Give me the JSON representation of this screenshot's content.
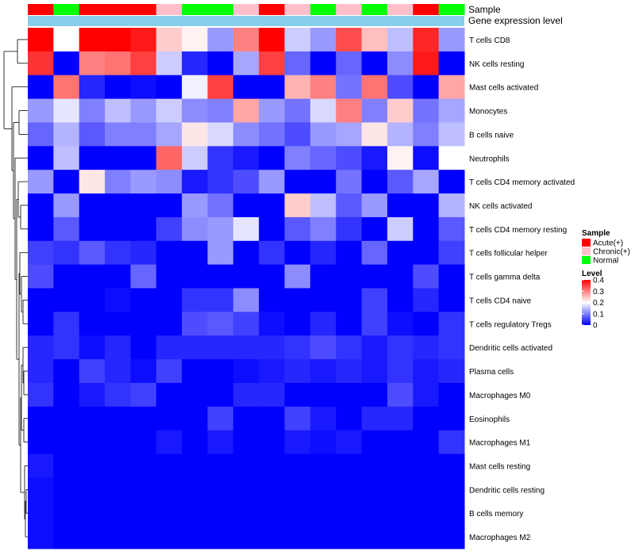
{
  "chart_data": {
    "type": "heatmap",
    "title": "",
    "annotation_tracks": {
      "sample_label": "Sample",
      "gene_label": "Gene expression level"
    },
    "columns_sample": [
      "Acute(+)",
      "Normal",
      "Acute(+)",
      "Acute(+)",
      "Acute(+)",
      "Chronic(+)",
      "Normal",
      "Normal",
      "Chronic(+)",
      "Acute(+)",
      "Chronic(+)",
      "Normal",
      "Chronic(+)",
      "Normal",
      "Chronic(+)",
      "Acute(+)",
      "Normal"
    ],
    "row_labels": [
      "T cells CD8",
      "NK cells resting",
      "Mast cells activated",
      "Monocytes",
      "B cells naive",
      "Neutrophils",
      "T cells CD4 memory activated",
      "NK cells activated",
      "T cells CD4 memory resting",
      "T cells follicular helper",
      "T cells gamma delta",
      "T cells CD4 naive",
      "T cells regulatory  Tregs",
      "Dendritic cells activated",
      "Plasma cells",
      "Macrophages M0",
      "Eosinophils",
      "Macrophages M1",
      "Mast cells resting",
      "Dendritic cells resting",
      "B cells memory",
      "Macrophages M2"
    ],
    "values": [
      [
        0.4,
        0.2,
        0.4,
        0.4,
        0.38,
        0.24,
        0.21,
        0.12,
        0.3,
        0.4,
        0.16,
        0.12,
        0.34,
        0.25,
        0.15,
        0.37,
        0.12
      ],
      [
        0.36,
        0.0,
        0.3,
        0.31,
        0.35,
        0.16,
        0.03,
        0.0,
        0.13,
        0.35,
        0.08,
        0.0,
        0.08,
        0.0,
        0.11,
        0.38,
        0.0
      ],
      [
        0.0,
        0.31,
        0.03,
        0.0,
        0.01,
        0.0,
        0.19,
        0.35,
        0.0,
        0.0,
        0.26,
        0.3,
        0.09,
        0.31,
        0.06,
        0.0,
        0.27
      ],
      [
        0.12,
        0.18,
        0.1,
        0.15,
        0.12,
        0.16,
        0.11,
        0.1,
        0.27,
        0.12,
        0.09,
        0.17,
        0.3,
        0.1,
        0.24,
        0.09,
        0.13
      ],
      [
        0.08,
        0.14,
        0.07,
        0.1,
        0.1,
        0.13,
        0.22,
        0.17,
        0.11,
        0.09,
        0.06,
        0.12,
        0.13,
        0.22,
        0.14,
        0.1,
        0.15
      ],
      [
        0.0,
        0.15,
        0.0,
        0.0,
        0.0,
        0.32,
        0.16,
        0.04,
        0.02,
        0.0,
        0.1,
        0.08,
        0.06,
        0.02,
        0.21,
        0.01,
        0.2
      ],
      [
        0.12,
        0.0,
        0.22,
        0.1,
        0.12,
        0.11,
        0.02,
        0.04,
        0.06,
        0.12,
        0.0,
        0.0,
        0.09,
        0.0,
        0.07,
        0.13,
        0.0
      ],
      [
        0.0,
        0.12,
        0.0,
        0.0,
        0.0,
        0.0,
        0.12,
        0.09,
        0.0,
        0.0,
        0.24,
        0.15,
        0.07,
        0.12,
        0.0,
        0.0,
        0.14
      ],
      [
        0.0,
        0.07,
        0.0,
        0.0,
        0.0,
        0.05,
        0.11,
        0.12,
        0.18,
        0.0,
        0.07,
        0.1,
        0.04,
        0.0,
        0.16,
        0.0,
        0.07
      ],
      [
        0.05,
        0.04,
        0.07,
        0.04,
        0.03,
        0.0,
        0.0,
        0.12,
        0.0,
        0.04,
        0.0,
        0.03,
        0.0,
        0.08,
        0.0,
        0.0,
        0.05
      ],
      [
        0.06,
        0.0,
        0.0,
        0.0,
        0.08,
        0.0,
        0.0,
        0.0,
        0.0,
        0.0,
        0.11,
        0.0,
        0.0,
        0.0,
        0.0,
        0.06,
        0.0
      ],
      [
        0.0,
        0.0,
        0.0,
        0.01,
        0.0,
        0.0,
        0.04,
        0.04,
        0.11,
        0.0,
        0.0,
        0.0,
        0.0,
        0.05,
        0.0,
        0.03,
        0.0
      ],
      [
        0.0,
        0.04,
        0.0,
        0.0,
        0.0,
        0.0,
        0.06,
        0.07,
        0.05,
        0.01,
        0.0,
        0.03,
        0.0,
        0.05,
        0.01,
        0.0,
        0.04
      ],
      [
        0.03,
        0.04,
        0.01,
        0.03,
        0.0,
        0.03,
        0.03,
        0.03,
        0.03,
        0.03,
        0.04,
        0.06,
        0.04,
        0.02,
        0.04,
        0.03,
        0.04
      ],
      [
        0.03,
        0.0,
        0.05,
        0.03,
        0.01,
        0.05,
        0.0,
        0.0,
        0.01,
        0.02,
        0.03,
        0.02,
        0.03,
        0.02,
        0.04,
        0.02,
        0.03
      ],
      [
        0.04,
        0.0,
        0.02,
        0.04,
        0.05,
        0.0,
        0.0,
        0.0,
        0.03,
        0.03,
        0.0,
        0.0,
        0.0,
        0.0,
        0.06,
        0.02,
        0.0
      ],
      [
        0.0,
        0.0,
        0.0,
        0.0,
        0.0,
        0.0,
        0.0,
        0.05,
        0.0,
        0.0,
        0.05,
        0.02,
        0.0,
        0.03,
        0.03,
        0.0,
        0.0
      ],
      [
        0.0,
        0.0,
        0.0,
        0.0,
        0.0,
        0.02,
        0.0,
        0.02,
        0.0,
        0.0,
        0.02,
        0.01,
        0.02,
        0.0,
        0.0,
        0.0,
        0.04
      ],
      [
        0.02,
        0.0,
        0.0,
        0.0,
        0.0,
        0.0,
        0.0,
        0.0,
        0.0,
        0.0,
        0.0,
        0.0,
        0.0,
        0.0,
        0.0,
        0.0,
        0.0
      ],
      [
        0.01,
        0.0,
        0.0,
        0.0,
        0.0,
        0.0,
        0.0,
        0.0,
        0.0,
        0.0,
        0.0,
        0.0,
        0.0,
        0.0,
        0.0,
        0.0,
        0.0
      ],
      [
        0.01,
        0.0,
        0.0,
        0.0,
        0.0,
        0.0,
        0.0,
        0.0,
        0.0,
        0.0,
        0.0,
        0.0,
        0.0,
        0.0,
        0.0,
        0.0,
        0.0
      ],
      [
        0.01,
        0.0,
        0.0,
        0.0,
        0.0,
        0.0,
        0.0,
        0.0,
        0.0,
        0.0,
        0.0,
        0.0,
        0.0,
        0.0,
        0.0,
        0.0,
        0.0
      ]
    ],
    "color_scale": {
      "min": 0,
      "mid": 0.2,
      "max": 0.4,
      "low": "#0000ff",
      "midColor": "#ffffff",
      "high": "#ff0000"
    },
    "legend_sample": {
      "title": "Sample",
      "items": [
        {
          "label": "Acute(+)",
          "color": "#ff0000"
        },
        {
          "label": "Chronic(+)",
          "color": "#ffc0cb"
        },
        {
          "label": "Normal",
          "color": "#00ff00"
        }
      ]
    },
    "legend_level": {
      "title": "Level",
      "ticks": [
        {
          "label": "0.4",
          "value": 0.4
        },
        {
          "label": "0.3",
          "value": 0.3
        },
        {
          "label": "0.2",
          "value": 0.2
        },
        {
          "label": "0.1",
          "value": 0.1
        },
        {
          "label": "0",
          "value": 0.0
        }
      ]
    },
    "gene_track_color": "#87ceeb"
  }
}
